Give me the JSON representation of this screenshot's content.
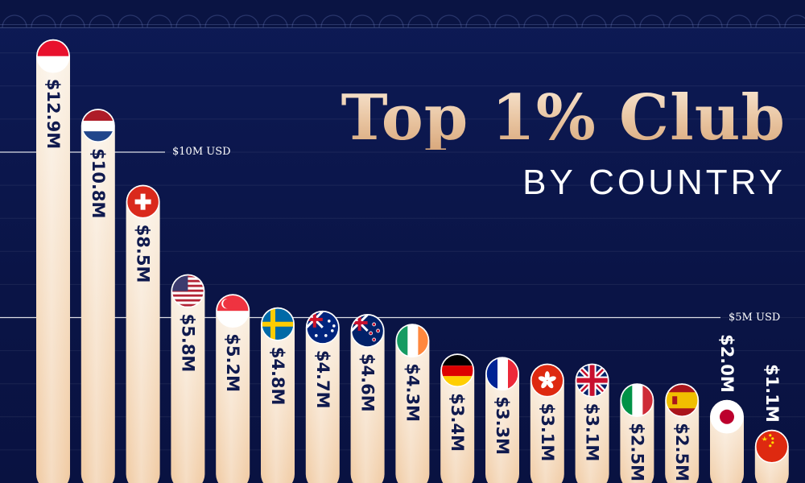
{
  "title": "Top 1% Club",
  "subtitle": "BY COUNTRY",
  "chart_data": {
    "type": "bar",
    "categories": [
      "Monaco",
      "Netherlands",
      "Switzerland",
      "United States",
      "Singapore",
      "Sweden",
      "Australia",
      "New Zealand",
      "Ireland",
      "Germany",
      "France",
      "Hong Kong",
      "United Kingdom",
      "Italy",
      "Spain",
      "Japan",
      "China"
    ],
    "values": [
      12.9,
      10.8,
      8.5,
      5.8,
      5.2,
      4.8,
      4.7,
      4.6,
      4.3,
      3.4,
      3.3,
      3.1,
      3.1,
      2.5,
      2.5,
      2.0,
      1.1
    ],
    "value_labels": [
      "$12.9M",
      "$10.8M",
      "$8.5M",
      "$5.8M",
      "$5.2M",
      "$4.8M",
      "$4.7M",
      "$4.6M",
      "$4.3M",
      "$3.4M",
      "$3.3M",
      "$3.1M",
      "$3.1M",
      "$2.5M",
      "$2.5M",
      "$2.0M",
      "$1.1M"
    ],
    "flag_icons": [
      "monaco-flag-icon",
      "netherlands-flag-icon",
      "switzerland-flag-icon",
      "usa-flag-icon",
      "singapore-flag-icon",
      "sweden-flag-icon",
      "australia-flag-icon",
      "new-zealand-flag-icon",
      "ireland-flag-icon",
      "germany-flag-icon",
      "france-flag-icon",
      "hong-kong-flag-icon",
      "uk-flag-icon",
      "italy-flag-icon",
      "spain-flag-icon",
      "japan-flag-icon",
      "china-flag-icon"
    ],
    "reference_lines": [
      {
        "value": 10,
        "label": "$10M USD"
      },
      {
        "value": 5,
        "label": "$5M USD"
      }
    ],
    "ylim": [
      0,
      13
    ],
    "grid": true,
    "colors": {
      "background": "#0b1547",
      "bar_top": "#fbf3e8",
      "bar_bottom": "#f0c9a0",
      "label": "#101a4e",
      "title_gold": "#e8c39f"
    }
  }
}
